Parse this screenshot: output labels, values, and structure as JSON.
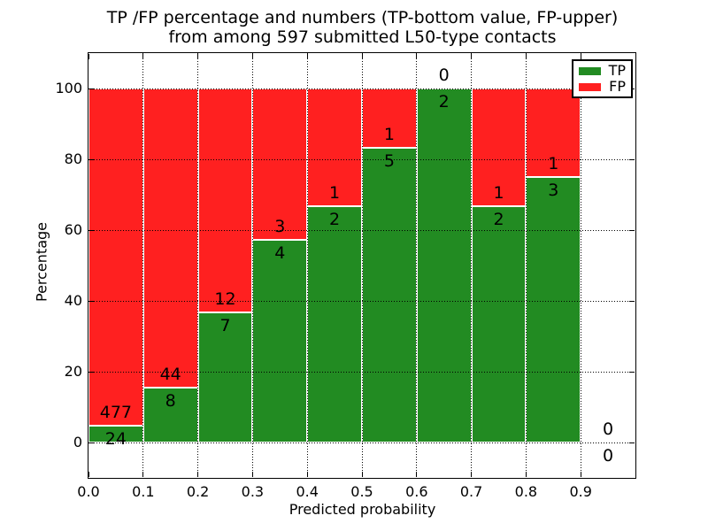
{
  "title": {
    "line1": "TP /FP percentage and numbers (TP-bottom value, FP-upper)",
    "line2": "from among 597 submitted L50-type contacts"
  },
  "legend": {
    "items": [
      {
        "label": "TP",
        "color": "#228b22"
      },
      {
        "label": "FP",
        "color": "#ff2020"
      }
    ]
  },
  "colors": {
    "tp": "#228b22",
    "fp": "#ff2020",
    "axis": "#000000",
    "grid": "#000000",
    "background": "#ffffff"
  },
  "chart_data": {
    "type": "bar",
    "stacked": true,
    "normalized_to_percent": true,
    "title": "TP /FP percentage and numbers (TP-bottom value, FP-upper) from among 597 submitted L50-type contacts",
    "xlabel": "Predicted probability",
    "ylabel": "Percentage",
    "xlim": [
      0.0,
      1.0
    ],
    "ylim": [
      -10,
      110
    ],
    "grid": "dotted",
    "legend_position": "upper right",
    "bin_edges": [
      0.0,
      0.1,
      0.2,
      0.3,
      0.4,
      0.5,
      0.6,
      0.7,
      0.8,
      0.9,
      1.0
    ],
    "x_ticks": [
      {
        "value": 0.0,
        "label": "0.0"
      },
      {
        "value": 0.1,
        "label": "0.1"
      },
      {
        "value": 0.2,
        "label": "0.2"
      },
      {
        "value": 0.3,
        "label": "0.3"
      },
      {
        "value": 0.4,
        "label": "0.4"
      },
      {
        "value": 0.5,
        "label": "0.5"
      },
      {
        "value": 0.6,
        "label": "0.6"
      },
      {
        "value": 0.7,
        "label": "0.7"
      },
      {
        "value": 0.8,
        "label": "0.8"
      },
      {
        "value": 0.9,
        "label": "0.9"
      }
    ],
    "y_ticks": [
      {
        "value": 0,
        "label": "0"
      },
      {
        "value": 20,
        "label": "20"
      },
      {
        "value": 40,
        "label": "40"
      },
      {
        "value": 60,
        "label": "60"
      },
      {
        "value": 80,
        "label": "80"
      },
      {
        "value": 100,
        "label": "100"
      }
    ],
    "series": [
      {
        "name": "TP",
        "color": "#228b22",
        "counts": [
          24,
          8,
          7,
          4,
          2,
          5,
          2,
          2,
          3,
          0
        ]
      },
      {
        "name": "FP",
        "color": "#ff2020",
        "counts": [
          477,
          44,
          12,
          3,
          1,
          1,
          0,
          1,
          1,
          0
        ]
      }
    ],
    "tp_percent": [
      4.79,
      15.38,
      36.84,
      57.14,
      66.67,
      83.33,
      100.0,
      66.67,
      75.0,
      0.0
    ]
  }
}
